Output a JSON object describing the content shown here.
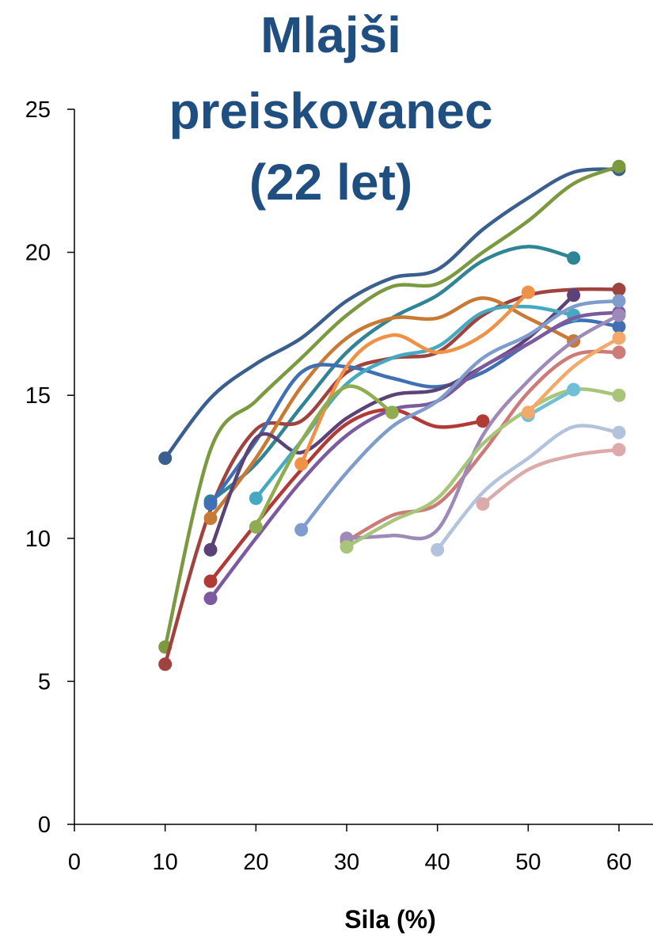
{
  "chart_data": {
    "type": "line",
    "title_lines": [
      "Mlajši",
      "preiskovanec",
      "(22 let)"
    ],
    "xlabel": "Sila  (%)",
    "ylabel": "",
    "xlim": [
      0,
      60
    ],
    "ylim": [
      0,
      25
    ],
    "xticks": [
      0,
      10,
      20,
      30,
      40,
      50,
      60
    ],
    "yticks": [
      0,
      5,
      10,
      15,
      20,
      25
    ],
    "grid": false,
    "legend": "none",
    "series": [
      {
        "color": "#3a5f8f",
        "points": [
          [
            10,
            12.8
          ],
          [
            15,
            14.9
          ],
          [
            20,
            16.1
          ],
          [
            25,
            17.0
          ],
          [
            30,
            18.3
          ],
          [
            35,
            19.1
          ],
          [
            40,
            19.4
          ],
          [
            45,
            20.8
          ],
          [
            50,
            21.9
          ],
          [
            55,
            22.8
          ],
          [
            60,
            22.9
          ]
        ]
      },
      {
        "color": "#7b9a3f",
        "points": [
          [
            10,
            6.2
          ],
          [
            15,
            13.1
          ],
          [
            20,
            14.8
          ],
          [
            25,
            16.3
          ],
          [
            30,
            17.8
          ],
          [
            35,
            18.8
          ],
          [
            40,
            18.9
          ],
          [
            45,
            20.0
          ],
          [
            50,
            21.1
          ],
          [
            55,
            22.4
          ],
          [
            60,
            23.0
          ]
        ]
      },
      {
        "color": "#2f8596",
        "points": [
          [
            15,
            11.3
          ],
          [
            20,
            12.6
          ],
          [
            25,
            14.6
          ],
          [
            30,
            16.5
          ],
          [
            35,
            17.7
          ],
          [
            40,
            18.5
          ],
          [
            45,
            19.7
          ],
          [
            50,
            20.2
          ],
          [
            55,
            19.8
          ]
        ]
      },
      {
        "color": "#a0433f",
        "points": [
          [
            10,
            5.6
          ],
          [
            15,
            11.0
          ],
          [
            20,
            13.8
          ],
          [
            25,
            14.1
          ],
          [
            30,
            15.8
          ],
          [
            35,
            16.3
          ],
          [
            40,
            16.5
          ],
          [
            45,
            17.8
          ],
          [
            50,
            18.5
          ],
          [
            55,
            18.7
          ],
          [
            60,
            18.7
          ]
        ]
      },
      {
        "color": "#c87a35",
        "points": [
          [
            15,
            10.7
          ],
          [
            20,
            12.8
          ],
          [
            25,
            15.3
          ],
          [
            30,
            17.0
          ],
          [
            35,
            17.7
          ],
          [
            40,
            17.7
          ],
          [
            45,
            18.4
          ],
          [
            50,
            17.7
          ],
          [
            55,
            16.9
          ]
        ]
      },
      {
        "color": "#3e70b3",
        "points": [
          [
            15,
            11.2
          ],
          [
            20,
            13.4
          ],
          [
            25,
            15.8
          ],
          [
            30,
            16.0
          ],
          [
            35,
            15.6
          ],
          [
            40,
            15.3
          ],
          [
            45,
            15.8
          ],
          [
            50,
            16.8
          ],
          [
            55,
            17.6
          ],
          [
            60,
            17.4
          ]
        ]
      },
      {
        "color": "#5c4377",
        "points": [
          [
            15,
            9.6
          ],
          [
            20,
            13.5
          ],
          [
            25,
            13.0
          ],
          [
            30,
            14.2
          ],
          [
            35,
            15.0
          ],
          [
            40,
            15.2
          ],
          [
            45,
            16.0
          ],
          [
            50,
            17.0
          ],
          [
            55,
            18.5
          ]
        ]
      },
      {
        "color": "#45a9c2",
        "points": [
          [
            20,
            11.4
          ],
          [
            25,
            13.4
          ],
          [
            30,
            15.4
          ],
          [
            35,
            16.3
          ],
          [
            40,
            16.7
          ],
          [
            45,
            17.9
          ],
          [
            50,
            18.1
          ],
          [
            55,
            17.8
          ]
        ]
      },
      {
        "color": "#b23a36",
        "points": [
          [
            15,
            8.5
          ],
          [
            20,
            10.5
          ],
          [
            25,
            12.4
          ],
          [
            30,
            14.0
          ],
          [
            35,
            14.5
          ],
          [
            40,
            13.9
          ],
          [
            45,
            14.1
          ]
        ]
      },
      {
        "color": "#7d5aa0",
        "points": [
          [
            15,
            7.9
          ],
          [
            20,
            10.0
          ],
          [
            25,
            12.0
          ],
          [
            30,
            13.6
          ],
          [
            35,
            14.5
          ],
          [
            40,
            14.8
          ],
          [
            45,
            16.0
          ],
          [
            50,
            16.8
          ],
          [
            55,
            17.7
          ],
          [
            60,
            17.9
          ]
        ]
      },
      {
        "color": "#ef9146",
        "points": [
          [
            25,
            12.6
          ],
          [
            30,
            16.0
          ],
          [
            35,
            17.1
          ],
          [
            40,
            16.5
          ],
          [
            45,
            17.1
          ],
          [
            50,
            18.6
          ]
        ]
      },
      {
        "color": "#8fac50",
        "points": [
          [
            20,
            10.4
          ],
          [
            25,
            13.4
          ],
          [
            30,
            15.3
          ],
          [
            35,
            14.4
          ]
        ]
      },
      {
        "color": "#7f9ccc",
        "points": [
          [
            25,
            10.3
          ],
          [
            30,
            12.3
          ],
          [
            35,
            13.9
          ],
          [
            40,
            14.8
          ],
          [
            45,
            16.3
          ],
          [
            50,
            17.1
          ],
          [
            55,
            18.1
          ],
          [
            60,
            18.3
          ]
        ]
      },
      {
        "color": "#cd7b78",
        "points": [
          [
            30,
            9.9
          ],
          [
            35,
            10.8
          ],
          [
            40,
            11.2
          ],
          [
            45,
            13.0
          ],
          [
            50,
            15.1
          ],
          [
            55,
            16.4
          ],
          [
            60,
            16.5
          ]
        ]
      },
      {
        "color": "#9d8ab8",
        "points": [
          [
            30,
            10.0
          ],
          [
            35,
            10.1
          ],
          [
            40,
            10.3
          ],
          [
            45,
            13.6
          ],
          [
            50,
            15.5
          ],
          [
            55,
            16.9
          ],
          [
            60,
            17.8
          ]
        ]
      },
      {
        "color": "#a9c57a",
        "points": [
          [
            30,
            9.7
          ],
          [
            35,
            10.6
          ],
          [
            40,
            11.4
          ],
          [
            45,
            13.3
          ],
          [
            50,
            14.5
          ],
          [
            55,
            15.2
          ],
          [
            60,
            15.0
          ]
        ]
      },
      {
        "color": "#6fc0d6",
        "points": [
          [
            50,
            14.3
          ],
          [
            55,
            15.2
          ]
        ]
      },
      {
        "color": "#f3a96a",
        "points": [
          [
            50,
            14.4
          ],
          [
            55,
            16.0
          ],
          [
            60,
            17.0
          ]
        ]
      },
      {
        "color": "#b3c3de",
        "points": [
          [
            40,
            9.6
          ],
          [
            45,
            11.6
          ],
          [
            50,
            12.8
          ],
          [
            55,
            13.9
          ],
          [
            60,
            13.7
          ]
        ]
      },
      {
        "color": "#dbaaa9",
        "points": [
          [
            45,
            11.2
          ],
          [
            50,
            12.4
          ],
          [
            55,
            12.9
          ],
          [
            60,
            13.1
          ]
        ]
      }
    ]
  }
}
